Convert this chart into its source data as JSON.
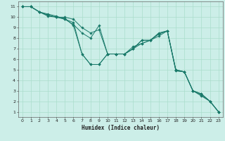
{
  "xlabel": "Humidex (Indice chaleur)",
  "ylabel": "",
  "bg_color": "#cceee8",
  "grid_color": "#aaddcc",
  "line_color": "#1a7a6a",
  "xlim": [
    -0.5,
    23.5
  ],
  "ylim": [
    0.5,
    11.5
  ],
  "xticks": [
    0,
    1,
    2,
    3,
    4,
    5,
    6,
    7,
    8,
    9,
    10,
    11,
    12,
    13,
    14,
    15,
    16,
    17,
    18,
    19,
    20,
    21,
    22,
    23
  ],
  "yticks": [
    1,
    2,
    3,
    4,
    5,
    6,
    7,
    8,
    9,
    10,
    11
  ],
  "series": [
    [
      [
        0,
        11
      ],
      [
        1,
        11
      ],
      [
        2,
        10.5
      ],
      [
        3,
        10.2
      ],
      [
        4,
        10
      ],
      [
        5,
        10
      ],
      [
        6,
        9.8
      ],
      [
        7,
        9
      ],
      [
        8,
        8.5
      ],
      [
        9,
        8.8
      ],
      [
        10,
        6.5
      ],
      [
        11,
        6.5
      ],
      [
        12,
        6.5
      ],
      [
        13,
        7
      ],
      [
        14,
        7.8
      ],
      [
        15,
        7.8
      ],
      [
        16,
        8.4
      ],
      [
        17,
        8.7
      ],
      [
        18,
        5
      ],
      [
        19,
        4.8
      ],
      [
        20,
        3
      ],
      [
        21,
        2.7
      ],
      [
        22,
        2
      ],
      [
        23,
        1
      ]
    ],
    [
      [
        0,
        11
      ],
      [
        1,
        11
      ],
      [
        2,
        10.5
      ],
      [
        3,
        10.2
      ],
      [
        4,
        10
      ],
      [
        5,
        9.9
      ],
      [
        6,
        9.2
      ],
      [
        7,
        6.5
      ],
      [
        8,
        5.5
      ],
      [
        9,
        5.5
      ],
      [
        10,
        6.5
      ],
      [
        11,
        6.5
      ],
      [
        12,
        6.5
      ],
      [
        13,
        7.2
      ],
      [
        14,
        7.5
      ],
      [
        15,
        7.8
      ],
      [
        16,
        8.4
      ],
      [
        17,
        8.7
      ],
      [
        18,
        4.9
      ],
      [
        19,
        4.8
      ],
      [
        20,
        3
      ],
      [
        21,
        2.6
      ],
      [
        22,
        2
      ],
      [
        23,
        1
      ]
    ],
    [
      [
        0,
        11
      ],
      [
        1,
        11
      ],
      [
        2,
        10.5
      ],
      [
        3,
        10.3
      ],
      [
        4,
        10.1
      ],
      [
        5,
        9.8
      ],
      [
        6,
        9.5
      ],
      [
        7,
        6.5
      ],
      [
        8,
        5.5
      ],
      [
        9,
        5.5
      ],
      [
        10,
        6.5
      ],
      [
        11,
        6.5
      ],
      [
        12,
        6.5
      ],
      [
        13,
        7
      ],
      [
        14,
        7.5
      ],
      [
        15,
        7.8
      ],
      [
        16,
        8.2
      ],
      [
        17,
        8.7
      ],
      [
        18,
        4.9
      ],
      [
        19,
        4.8
      ],
      [
        20,
        3
      ],
      [
        21,
        2.5
      ],
      [
        22,
        2
      ],
      [
        23,
        1
      ]
    ],
    [
      [
        0,
        11
      ],
      [
        1,
        11
      ],
      [
        2,
        10.5
      ],
      [
        3,
        10.1
      ],
      [
        4,
        10
      ],
      [
        5,
        9.8
      ],
      [
        6,
        9.3
      ],
      [
        7,
        8.5
      ],
      [
        8,
        8
      ],
      [
        9,
        9.2
      ],
      [
        10,
        6.5
      ],
      [
        11,
        6.5
      ],
      [
        12,
        6.5
      ],
      [
        13,
        7
      ],
      [
        14,
        7.8
      ],
      [
        15,
        7.8
      ],
      [
        16,
        8.5
      ],
      [
        17,
        8.7
      ],
      [
        18,
        5
      ],
      [
        19,
        4.8
      ],
      [
        20,
        3
      ],
      [
        21,
        2.7
      ],
      [
        22,
        2
      ],
      [
        23,
        1
      ]
    ]
  ]
}
